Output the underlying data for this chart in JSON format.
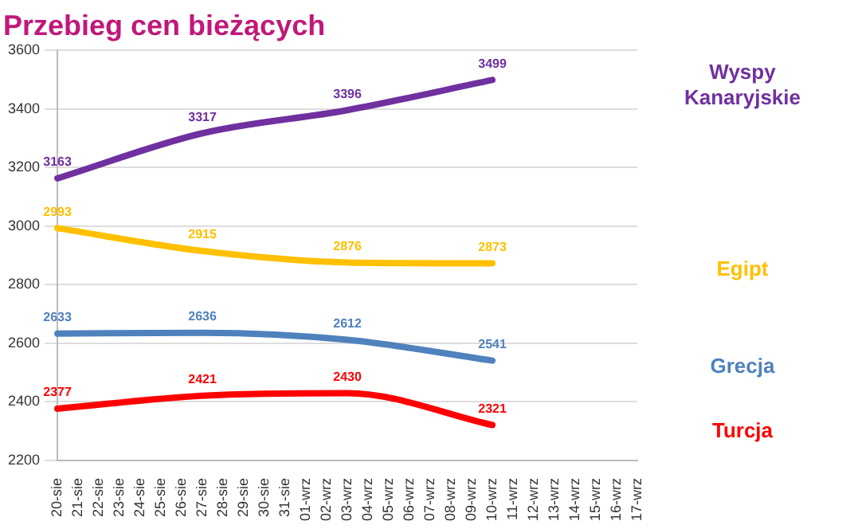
{
  "chart_data": {
    "type": "line",
    "title": "Przebieg cen bieżących",
    "categories": [
      "20-sie",
      "21-sie",
      "22-sie",
      "23-sie",
      "24-sie",
      "25-sie",
      "26-sie",
      "27-sie",
      "28-sie",
      "29-sie",
      "30-sie",
      "31-sie",
      "01-wrz",
      "02-wrz",
      "03-wrz",
      "04-wrz",
      "05-wrz",
      "06-wrz",
      "07-wrz",
      "08-wrz",
      "09-wrz",
      "10-wrz",
      "11-wrz",
      "12-wrz",
      "13-wrz",
      "14-wrz",
      "15-wrz",
      "16-wrz",
      "17-wrz"
    ],
    "series": [
      {
        "name": "Wyspy Kanaryjskie",
        "color": "#7030a0",
        "values": [
          3163,
          null,
          null,
          null,
          null,
          null,
          null,
          3317,
          null,
          null,
          null,
          null,
          null,
          null,
          3396,
          null,
          null,
          null,
          null,
          null,
          null,
          3499,
          null,
          null,
          null,
          null,
          null,
          null,
          null
        ]
      },
      {
        "name": "Egipt",
        "color": "#ffc000",
        "values": [
          2993,
          null,
          null,
          null,
          null,
          null,
          null,
          2915,
          null,
          null,
          null,
          null,
          null,
          null,
          2876,
          null,
          null,
          null,
          null,
          null,
          null,
          2873,
          null,
          null,
          null,
          null,
          null,
          null,
          null
        ]
      },
      {
        "name": "Grecja",
        "color": "#4f81bd",
        "values": [
          2633,
          null,
          null,
          null,
          null,
          null,
          null,
          2636,
          null,
          null,
          null,
          null,
          null,
          null,
          2612,
          null,
          null,
          null,
          null,
          null,
          null,
          2541,
          null,
          null,
          null,
          null,
          null,
          null,
          null
        ]
      },
      {
        "name": "Turcja",
        "color": "#ff0000",
        "values": [
          2377,
          null,
          null,
          null,
          null,
          null,
          null,
          2421,
          null,
          null,
          null,
          null,
          null,
          null,
          2430,
          null,
          null,
          null,
          null,
          null,
          null,
          2321,
          null,
          null,
          null,
          null,
          null,
          null,
          null
        ]
      }
    ],
    "ylim": [
      2200,
      3600
    ],
    "yticks": [
      2200,
      2400,
      2600,
      2800,
      3000,
      3200,
      3400,
      3600
    ],
    "grid": "y",
    "legend": false,
    "marker": "none",
    "line_style": "solid",
    "data_labels": true
  }
}
